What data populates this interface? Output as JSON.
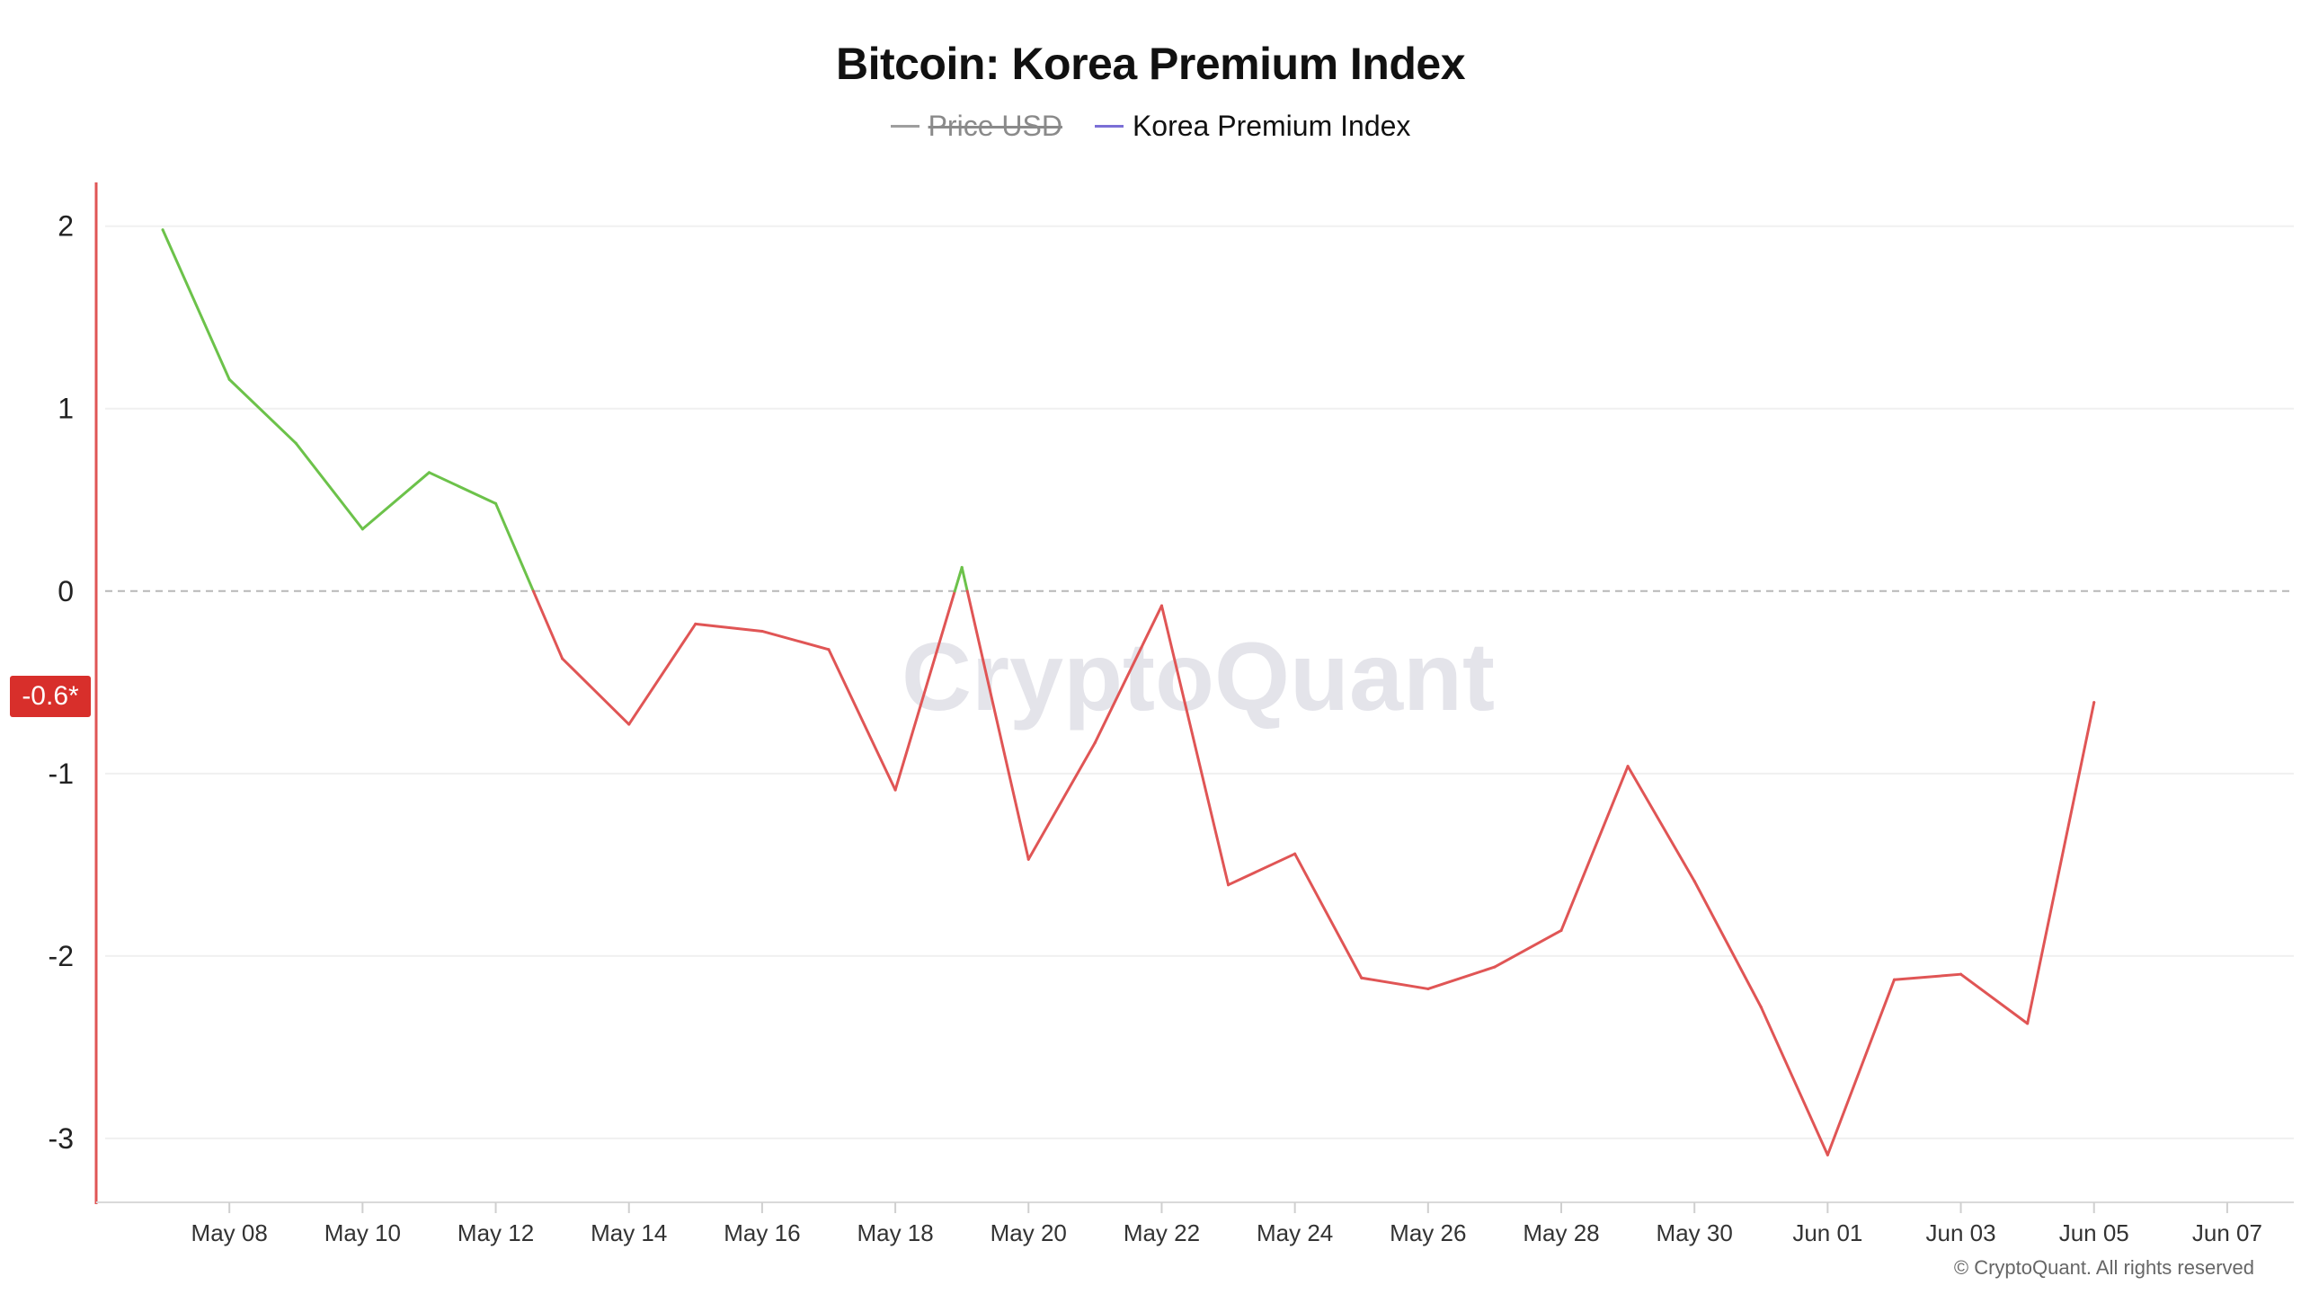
{
  "chart_data": {
    "type": "line",
    "title": "Bitcoin: Korea Premium Index",
    "legend": [
      {
        "name": "Price USD",
        "color": "#9e9e9e",
        "hidden": true
      },
      {
        "name": "Korea Premium Index",
        "color": "#7b6fd6",
        "hidden": false
      }
    ],
    "legend_placement": "top-center",
    "x": [
      "2024-05-07",
      "2024-05-08",
      "2024-05-09",
      "2024-05-10",
      "2024-05-11",
      "2024-05-12",
      "2024-05-13",
      "2024-05-14",
      "2024-05-15",
      "2024-05-16",
      "2024-05-17",
      "2024-05-18",
      "2024-05-19",
      "2024-05-20",
      "2024-05-21",
      "2024-05-22",
      "2024-05-23",
      "2024-05-24",
      "2024-05-25",
      "2024-05-26",
      "2024-05-27",
      "2024-05-28",
      "2024-05-29",
      "2024-05-30",
      "2024-05-31",
      "2024-06-01",
      "2024-06-02",
      "2024-06-03",
      "2024-06-04",
      "2024-06-05"
    ],
    "series": [
      {
        "name": "Korea Premium Index",
        "values": [
          1.98,
          1.16,
          0.81,
          0.34,
          0.65,
          0.48,
          -0.37,
          -0.73,
          -0.18,
          -0.22,
          -0.32,
          -1.09,
          0.13,
          -1.47,
          -0.83,
          -0.08,
          -1.61,
          -1.44,
          -2.12,
          -2.18,
          -2.06,
          -1.86,
          -0.96,
          -1.59,
          -2.28,
          -3.09,
          -2.13,
          -2.1,
          -2.37,
          -0.61
        ]
      }
    ],
    "positive_color": "#6cc24a",
    "negative_color": "#e05555",
    "x_tick_labels": [
      {
        "date": "2024-05-08",
        "label": "May 08"
      },
      {
        "date": "2024-05-10",
        "label": "May 10"
      },
      {
        "date": "2024-05-12",
        "label": "May 12"
      },
      {
        "date": "2024-05-14",
        "label": "May 14"
      },
      {
        "date": "2024-05-16",
        "label": "May 16"
      },
      {
        "date": "2024-05-18",
        "label": "May 18"
      },
      {
        "date": "2024-05-20",
        "label": "May 20"
      },
      {
        "date": "2024-05-22",
        "label": "May 22"
      },
      {
        "date": "2024-05-24",
        "label": "May 24"
      },
      {
        "date": "2024-05-26",
        "label": "May 26"
      },
      {
        "date": "2024-05-28",
        "label": "May 28"
      },
      {
        "date": "2024-05-30",
        "label": "May 30"
      },
      {
        "date": "2024-06-01",
        "label": "Jun 01"
      },
      {
        "date": "2024-06-03",
        "label": "Jun 03"
      },
      {
        "date": "2024-06-05",
        "label": "Jun 05"
      },
      {
        "date": "2024-06-07",
        "label": "Jun 07"
      }
    ],
    "xlim": [
      "2024-05-06",
      "2024-06-08"
    ],
    "y_ticks": [
      2,
      1,
      0,
      -1,
      -2,
      -3
    ],
    "ylim": [
      -3.35,
      2.23
    ],
    "zero_line": "dashed",
    "grid": true,
    "current_value_label": "-0.6*",
    "current_value": -0.61,
    "watermark": "CryptoQuant"
  },
  "footer": {
    "copyright": "© CryptoQuant. All rights reserved"
  }
}
